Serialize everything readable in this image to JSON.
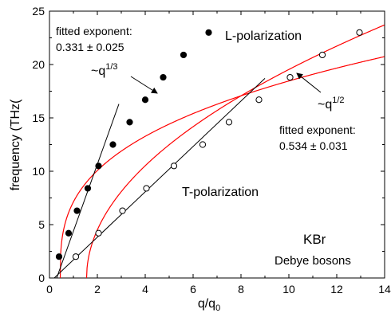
{
  "chart_data": {
    "type": "scatter",
    "xlabel": "q/q",
    "xlabel_sub": "0",
    "ylabel": "frequency  (THz(",
    "xlim": [
      0,
      14
    ],
    "ylim": [
      0,
      25
    ],
    "x_ticks": [
      0,
      2,
      4,
      6,
      8,
      10,
      12,
      14
    ],
    "y_ticks": [
      0,
      5,
      10,
      15,
      20,
      25
    ],
    "series": [
      {
        "name": "L-polarization",
        "marker": "filled-circle",
        "x": [
          0.4,
          0.8,
          1.15,
          1.6,
          2.05,
          2.65,
          3.35,
          4.0,
          4.75,
          5.6,
          6.65
        ],
        "y": [
          2.0,
          4.2,
          6.3,
          8.4,
          10.5,
          12.5,
          14.6,
          16.7,
          18.8,
          20.9,
          23.0
        ]
      },
      {
        "name": "T-polarization",
        "marker": "open-circle",
        "x": [
          1.1,
          2.05,
          3.05,
          4.05,
          5.2,
          6.4,
          7.5,
          8.75,
          10.05,
          11.4,
          12.95
        ],
        "y": [
          2.0,
          4.2,
          6.3,
          8.4,
          10.5,
          12.5,
          14.6,
          16.7,
          18.8,
          20.9,
          23.0
        ]
      }
    ],
    "fit_lines": [
      {
        "name": "L fit",
        "color": "#ff0000",
        "law": "q^(1/3)",
        "x0": 0.45,
        "a": 8.7
      },
      {
        "name": "T fit",
        "color": "#ff0000",
        "law": "q^(1/2)",
        "x0": 1.55,
        "a": 6.72
      },
      {
        "name": "L linear",
        "color": "#000000",
        "from": [
          0.3,
          0
        ],
        "to": [
          2.9,
          16.3
        ]
      },
      {
        "name": "T linear",
        "color": "#000000",
        "from": [
          0.2,
          0
        ],
        "to": [
          9.0,
          18.7
        ]
      }
    ],
    "annotations": {
      "l_label": "L-polarization",
      "t_label": "T-polarization",
      "l_power_base": "~q",
      "l_power_exp": "1/3",
      "t_power_base": "~q",
      "t_power_exp": "1/2",
      "l_fit_line1": "fitted exponent:",
      "l_fit_line2": "0.331 ± 0.025",
      "t_fit_line1": "fitted exponent:",
      "t_fit_line2": "0.534 ± 0.031",
      "material": "KBr",
      "subtitle": "Debye bosons"
    },
    "grid": false,
    "colors": {
      "fit": "#ff0000",
      "axis": "#000000"
    }
  }
}
